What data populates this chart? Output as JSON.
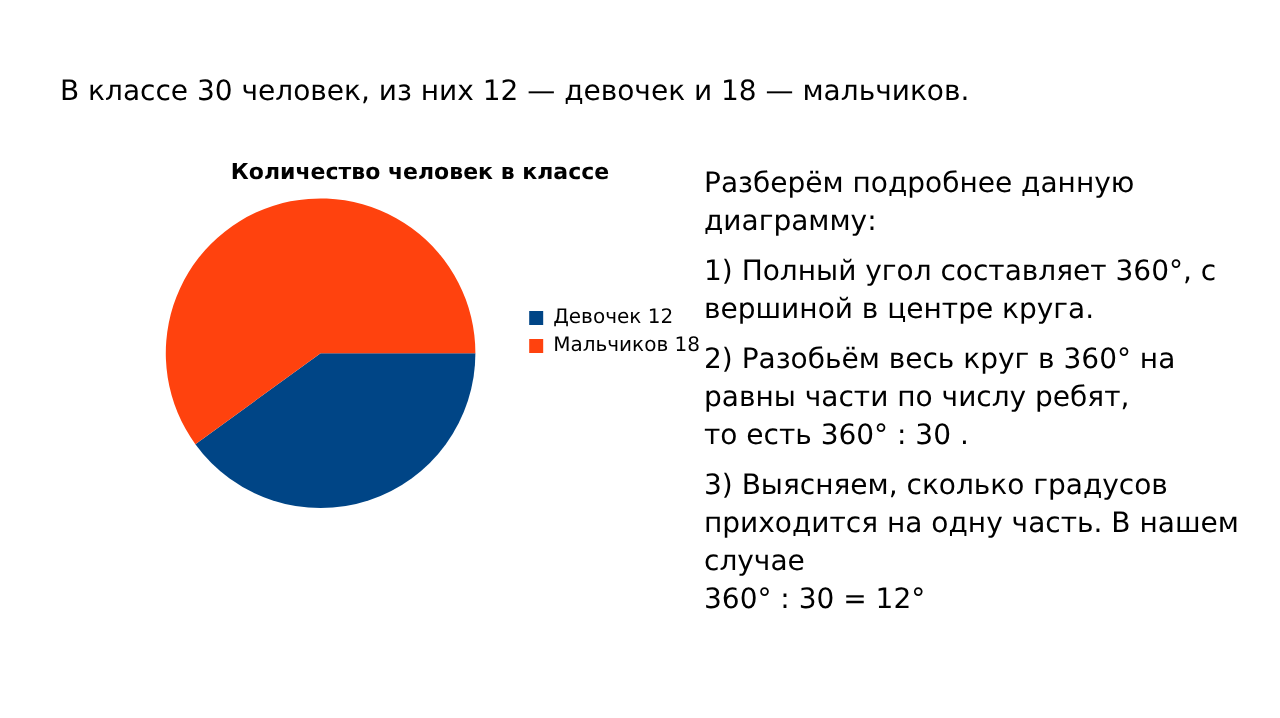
{
  "chart_data": {
    "type": "pie",
    "title": "Количество человек в классе",
    "categories": [
      "Девочек 12",
      "Мальчиков 18"
    ],
    "values": [
      12,
      18
    ],
    "colors": [
      "#004586",
      "#ff420e"
    ],
    "legend": "right",
    "annotations": [
      "В классе 30 человек, из них 12 — девочек и 18 — мальчиков.",
      "Разберём подробнее данную диаграмму:",
      "1) Полный угол составляет 360°, с вершиной в центре круга.",
      "2) Разобьём весь круг в 360° на равны части по числу ребят,\nто есть 360° : 30 .",
      "3) Выясняем, сколько градусов приходится на одну часть. В нашем случае\n360° : 30 = 12°"
    ]
  }
}
